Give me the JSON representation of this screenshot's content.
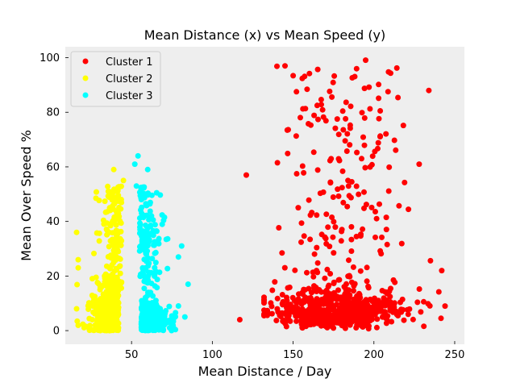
{
  "chart_data": {
    "type": "scatter",
    "title": "Mean Distance (x) vs Mean Speed (y)",
    "xlabel": "Mean Distance / Day",
    "ylabel": "Mean Over Speed %",
    "xlim": [
      9,
      256
    ],
    "ylim": [
      -5,
      104
    ],
    "x_ticks": [
      50,
      100,
      150,
      200,
      250
    ],
    "y_ticks": [
      0,
      20,
      40,
      60,
      80,
      100
    ],
    "grid": false,
    "background": "#eeeeee",
    "legend_position": "top-left",
    "series": [
      {
        "name": "Cluster 1",
        "color": "#ff0000",
        "x_range": [
          117,
          246
        ],
        "points": []
      },
      {
        "name": "Cluster 2",
        "color": "#ffff00",
        "x_range": [
          15,
          50
        ],
        "points": []
      },
      {
        "name": "Cluster 3",
        "color": "#00ffff",
        "x_range": [
          50,
          85
        ],
        "points": []
      }
    ]
  }
}
